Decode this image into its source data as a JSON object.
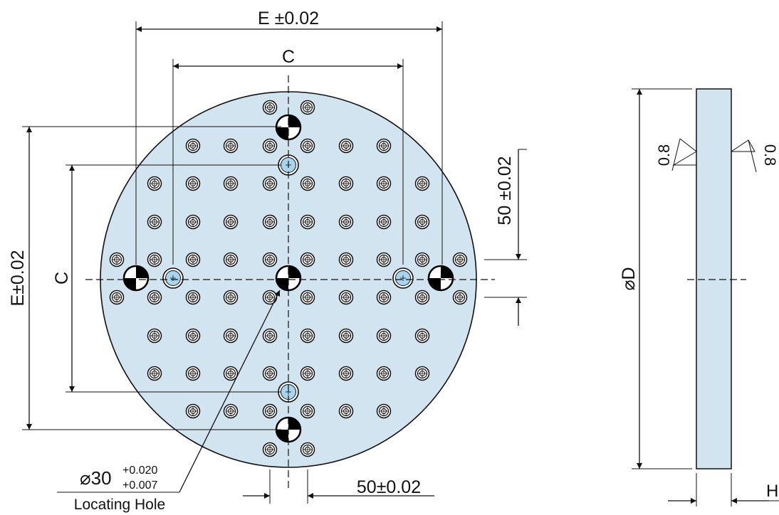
{
  "colors": {
    "plate_fill": "#d2e4ef",
    "outline": "#111111",
    "hole_blue": "#a8d4f0",
    "marker_dark": "#000000",
    "marker_light": "#ffffff"
  },
  "labels": {
    "top_outer": "E ±0.02",
    "top_inner": "C",
    "left_outer": "E±0.02",
    "left_inner": "C",
    "right_pitch": "50 ±0.02",
    "bottom_pitch": "50±0.02",
    "locating_dia_main": "⌀30",
    "locating_tol_upper": "+0.020",
    "locating_tol_lower": "+0.007",
    "locating_caption": "Locating Hole",
    "side_diameter": "⌀D",
    "side_height": "H",
    "roughness_left": "0.8",
    "roughness_right": "0.8"
  },
  "icons": {
    "reference_marker": "quadrant-target-icon",
    "screw_hole": "concentric-circle-icon",
    "dowel_hole": "blue-hole-icon"
  }
}
